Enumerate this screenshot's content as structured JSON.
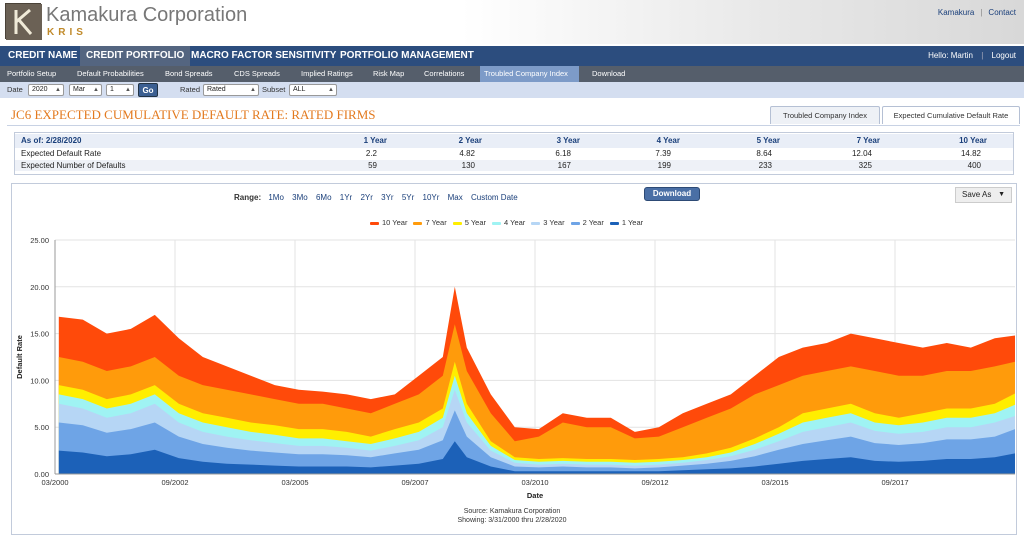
{
  "header": {
    "logo_title": "Kamakura Corporation",
    "logo_subtitle": "KRIS",
    "links": [
      "Kamakura",
      "Contact"
    ]
  },
  "main_nav": {
    "items": [
      "CREDIT NAME",
      "CREDIT PORTFOLIO",
      "MACRO FACTOR SENSITIVITY",
      "PORTFOLIO MANAGEMENT"
    ],
    "active": "CREDIT PORTFOLIO",
    "greeting": "Hello: Martin",
    "logout": "Logout"
  },
  "sub_nav": {
    "items": [
      "Portfolio Setup",
      "Default Probabilities",
      "Bond Spreads",
      "CDS Spreads",
      "Implied Ratings",
      "Risk Map",
      "Correlations",
      "Troubled Company Index",
      "Download"
    ],
    "active": "Troubled Company Index"
  },
  "controls": {
    "date_label": "Date",
    "year": "2020",
    "month": "Mar",
    "day": "1",
    "go": "Go",
    "rated_label": "Rated",
    "rated_value": "Rated",
    "subset_label": "Subset",
    "subset_value": "ALL"
  },
  "page": {
    "title": "JC6 EXPECTED CUMULATIVE DEFAULT RATE: RATED FIRMS",
    "tabs": [
      "Troubled Company Index",
      "Expected Cumulative Default Rate"
    ],
    "active_tab": "Expected Cumulative Default Rate"
  },
  "summary": {
    "as_of": "As of: 2/28/2020",
    "columns": [
      "1 Year",
      "2 Year",
      "3 Year",
      "4 Year",
      "5 Year",
      "7 Year",
      "10 Year"
    ],
    "rows": [
      {
        "label": "Expected Default Rate",
        "values": [
          "2.2",
          "4.82",
          "6.18",
          "7.39",
          "8.64",
          "12.04",
          "14.82"
        ]
      },
      {
        "label": "Expected Number of Defaults",
        "values": [
          "59",
          "130",
          "167",
          "199",
          "233",
          "325",
          "400"
        ]
      }
    ]
  },
  "chart_toolbar": {
    "range_label": "Range:",
    "range_options": [
      "1Mo",
      "3Mo",
      "6Mo",
      "1Yr",
      "2Yr",
      "3Yr",
      "5Yr",
      "10Yr",
      "Max",
      "Custom Date"
    ],
    "download": "Download",
    "save_as": "Save As"
  },
  "chart_footer": {
    "source": "Source: Kamakura Corporation",
    "showing": "Showing: 3/31/2000 thru 2/28/2020"
  },
  "chart_data": {
    "type": "area",
    "xlabel": "Date",
    "ylabel": "Default Rate",
    "ylim": [
      0,
      25
    ],
    "yticks": [
      "0.00",
      "5.00",
      "10.00",
      "15.00",
      "20.00",
      "25.00"
    ],
    "xticks": [
      "03/2000",
      "09/2002",
      "03/2005",
      "09/2007",
      "03/2010",
      "09/2012",
      "03/2015",
      "09/2017"
    ],
    "x": [
      2000.25,
      2000.75,
      2001.25,
      2001.75,
      2002.25,
      2002.75,
      2003.25,
      2003.75,
      2004.25,
      2004.75,
      2005.25,
      2005.75,
      2006.25,
      2006.75,
      2007.25,
      2007.75,
      2008.25,
      2008.5,
      2008.75,
      2009.25,
      2009.75,
      2010.25,
      2010.75,
      2011.25,
      2011.75,
      2012.25,
      2012.75,
      2013.25,
      2013.75,
      2014.25,
      2014.75,
      2015.25,
      2015.75,
      2016.25,
      2016.75,
      2017.25,
      2017.75,
      2018.25,
      2018.75,
      2019.25,
      2019.75,
      2020.17
    ],
    "legend_position": "top-center",
    "grid": true,
    "series": [
      {
        "name": "10 Year",
        "color": "#ff4a0a",
        "values": [
          16.8,
          16.5,
          15.0,
          15.5,
          17.0,
          14.5,
          12.5,
          11.5,
          10.5,
          9.5,
          9.0,
          8.8,
          8.5,
          8.0,
          8.5,
          10.5,
          12.5,
          20.0,
          13.5,
          8.5,
          5.0,
          4.8,
          6.5,
          6.0,
          6.0,
          4.5,
          5.0,
          6.5,
          7.5,
          8.5,
          10.5,
          12.5,
          13.5,
          14.0,
          15.0,
          14.5,
          14.0,
          13.5,
          14.0,
          13.5,
          14.5,
          14.8
        ]
      },
      {
        "name": "7 Year",
        "color": "#ff9b0b",
        "values": [
          12.5,
          12.0,
          11.0,
          11.5,
          12.5,
          10.5,
          9.5,
          9.0,
          8.5,
          8.0,
          7.5,
          7.5,
          7.0,
          6.5,
          7.5,
          8.5,
          10.5,
          16.0,
          11.0,
          6.5,
          3.5,
          4.0,
          5.5,
          5.0,
          5.0,
          3.8,
          4.0,
          5.0,
          6.0,
          7.0,
          8.5,
          9.5,
          10.5,
          11.0,
          11.5,
          11.0,
          10.5,
          10.5,
          11.0,
          11.0,
          11.5,
          12.0
        ]
      },
      {
        "name": "5 Year",
        "color": "#ffee00",
        "values": [
          9.5,
          9.0,
          8.0,
          8.5,
          9.5,
          7.5,
          6.5,
          6.0,
          5.5,
          5.2,
          4.8,
          4.8,
          4.5,
          4.0,
          4.8,
          5.5,
          7.0,
          12.0,
          7.5,
          3.5,
          1.8,
          1.6,
          1.7,
          1.6,
          1.6,
          1.5,
          1.6,
          1.8,
          2.2,
          2.8,
          3.8,
          5.0,
          6.5,
          7.0,
          7.5,
          6.5,
          6.0,
          6.5,
          7.0,
          7.0,
          7.5,
          8.6
        ]
      },
      {
        "name": "4 Year",
        "color": "#9ff3f3",
        "values": [
          8.5,
          8.0,
          7.0,
          7.5,
          8.5,
          6.5,
          5.5,
          5.0,
          4.5,
          4.2,
          3.8,
          3.8,
          3.5,
          3.2,
          3.8,
          4.5,
          6.0,
          10.5,
          6.5,
          3.0,
          1.5,
          1.3,
          1.4,
          1.3,
          1.3,
          1.2,
          1.3,
          1.5,
          1.8,
          2.3,
          3.2,
          4.3,
          5.5,
          6.0,
          6.5,
          5.5,
          5.2,
          5.5,
          6.0,
          6.0,
          6.5,
          7.4
        ]
      },
      {
        "name": "3 Year",
        "color": "#b6d6f5",
        "values": [
          7.5,
          7.0,
          6.0,
          6.5,
          7.5,
          5.5,
          4.5,
          4.0,
          3.6,
          3.3,
          3.0,
          3.0,
          2.8,
          2.5,
          3.0,
          3.6,
          5.0,
          9.0,
          5.5,
          2.5,
          1.2,
          1.0,
          1.1,
          1.0,
          1.0,
          0.9,
          1.0,
          1.2,
          1.5,
          1.9,
          2.6,
          3.5,
          4.5,
          5.0,
          5.5,
          4.6,
          4.3,
          4.5,
          5.0,
          5.0,
          5.5,
          6.2
        ]
      },
      {
        "name": "2 Year",
        "color": "#6ea4e6",
        "values": [
          5.5,
          5.2,
          4.4,
          4.8,
          5.5,
          4.0,
          3.2,
          2.8,
          2.5,
          2.3,
          2.1,
          2.1,
          2.0,
          1.8,
          2.2,
          2.6,
          3.6,
          6.8,
          4.0,
          1.8,
          0.8,
          0.7,
          0.8,
          0.7,
          0.7,
          0.6,
          0.7,
          0.9,
          1.1,
          1.4,
          1.9,
          2.6,
          3.2,
          3.6,
          4.0,
          3.3,
          3.1,
          3.3,
          3.7,
          3.7,
          4.0,
          4.8
        ]
      },
      {
        "name": "1 Year",
        "color": "#1c61b8",
        "values": [
          2.5,
          2.3,
          1.9,
          2.1,
          2.6,
          1.7,
          1.3,
          1.1,
          1.0,
          0.9,
          0.8,
          0.8,
          0.8,
          0.7,
          0.9,
          1.1,
          1.6,
          3.5,
          1.8,
          0.8,
          0.3,
          0.3,
          0.3,
          0.3,
          0.3,
          0.3,
          0.3,
          0.4,
          0.5,
          0.6,
          0.8,
          1.1,
          1.4,
          1.6,
          1.8,
          1.4,
          1.3,
          1.4,
          1.6,
          1.6,
          1.8,
          2.2
        ]
      }
    ]
  }
}
